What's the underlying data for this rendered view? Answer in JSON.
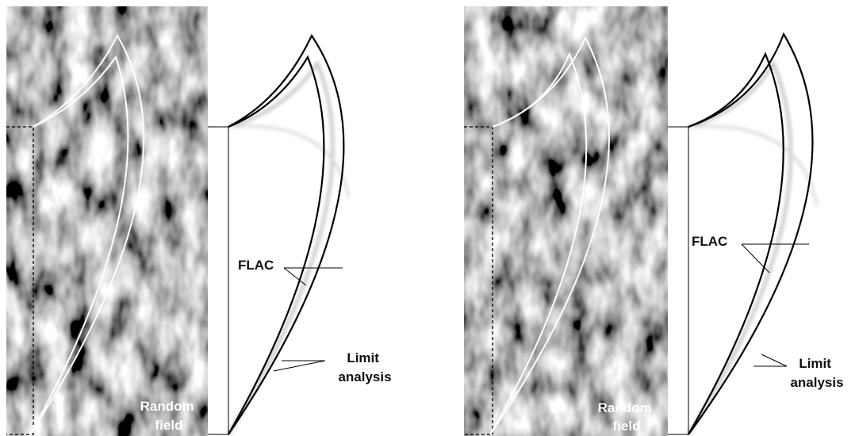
{
  "panels": [
    {
      "random_field": [
        "Random",
        "field"
      ],
      "flac": "FLAC",
      "limit_analysis": [
        "Limit",
        "analysis"
      ]
    },
    {
      "random_field": [
        "Random",
        "field"
      ],
      "flac": "FLAC",
      "limit_analysis": [
        "Limit",
        "analysis"
      ]
    }
  ]
}
